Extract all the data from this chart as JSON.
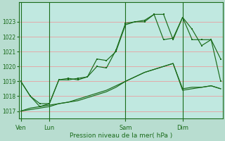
{
  "xlabel": "Pression niveau de la mer( hPa )",
  "bg_color": "#b8ddd0",
  "plot_bg_color": "#c0e8e0",
  "grid_color": "#e8a0a0",
  "line_color": "#1a6b1a",
  "ylim": [
    1016.5,
    1024.3
  ],
  "yticks": [
    1017,
    1018,
    1019,
    1020,
    1021,
    1022,
    1023
  ],
  "day_labels": [
    "Ven",
    "Lun",
    "Sam",
    "Dim"
  ],
  "day_positions": [
    0,
    3,
    11,
    17
  ],
  "xlim": [
    -0.2,
    21.2
  ],
  "line1_x": [
    0,
    1,
    2,
    3,
    4,
    5,
    6,
    7,
    8,
    9,
    10,
    11,
    12,
    13,
    14,
    15,
    16,
    17,
    18,
    19,
    20,
    21
  ],
  "line1_y": [
    1019.0,
    1018.0,
    1017.3,
    1017.5,
    1019.1,
    1019.1,
    1019.2,
    1019.3,
    1020.5,
    1020.4,
    1021.0,
    1022.8,
    1023.0,
    1023.1,
    1023.5,
    1023.5,
    1021.8,
    1023.3,
    1022.5,
    1021.4,
    1021.8,
    1020.5
  ],
  "line2_x": [
    0,
    1,
    2,
    3,
    4,
    5,
    6,
    7,
    8,
    9,
    10,
    11,
    12,
    13,
    14,
    15,
    16,
    17,
    18,
    19,
    20,
    21
  ],
  "line2_y": [
    1019.0,
    1018.0,
    1017.5,
    1017.5,
    1019.1,
    1019.2,
    1019.1,
    1019.3,
    1020.0,
    1019.9,
    1021.1,
    1022.9,
    1023.0,
    1023.0,
    1023.5,
    1021.8,
    1021.9,
    1023.3,
    1021.8,
    1021.8,
    1021.8,
    1019.0
  ],
  "line3_x": [
    0,
    1,
    2,
    3,
    4,
    5,
    6,
    7,
    8,
    9,
    10,
    11,
    12,
    13,
    14,
    15,
    16,
    17,
    18,
    19,
    20,
    21
  ],
  "line3_y": [
    1017.0,
    1017.2,
    1017.3,
    1017.4,
    1017.5,
    1017.6,
    1017.7,
    1017.9,
    1018.1,
    1018.3,
    1018.6,
    1019.0,
    1019.3,
    1019.6,
    1019.8,
    1020.0,
    1020.2,
    1018.5,
    1018.6,
    1018.6,
    1018.7,
    1018.5
  ],
  "line4_x": [
    0,
    1,
    2,
    3,
    4,
    5,
    6,
    7,
    8,
    9,
    10,
    11,
    12,
    13,
    14,
    15,
    16,
    17,
    18,
    19,
    20,
    21
  ],
  "line4_y": [
    1017.0,
    1017.1,
    1017.2,
    1017.3,
    1017.5,
    1017.6,
    1017.8,
    1018.0,
    1018.2,
    1018.4,
    1018.7,
    1019.0,
    1019.3,
    1019.6,
    1019.8,
    1020.0,
    1020.2,
    1018.4,
    1018.5,
    1018.6,
    1018.7,
    1018.5
  ]
}
